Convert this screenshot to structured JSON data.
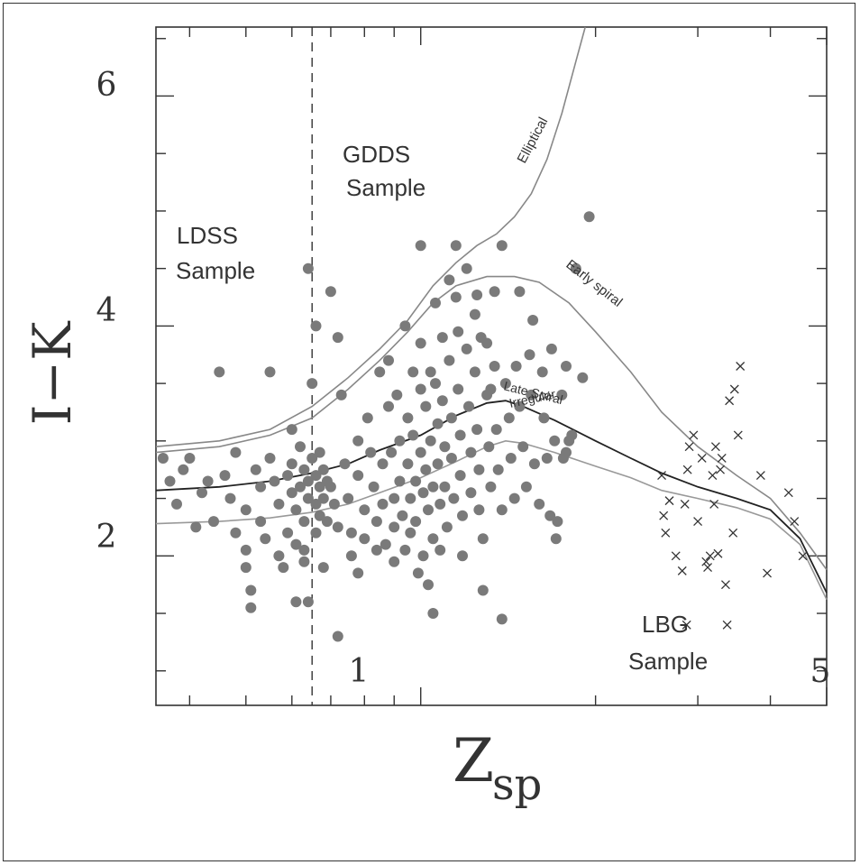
{
  "chart_data": {
    "type": "scatter",
    "xlabel_main": "Z",
    "xlabel_sub": "sp",
    "ylabel": "I−K",
    "x_scale": "log",
    "xlim": [
      0.35,
      5
    ],
    "ylim": [
      0.7,
      6.6
    ],
    "x_ticklabels": [
      "1",
      "5"
    ],
    "y_ticklabels": [
      "2",
      "4",
      "6"
    ],
    "grid": false,
    "region_labels": {
      "gdds_line1": "GDDS",
      "gdds_line2": "Sample",
      "ldss_line1": "LDSS",
      "ldss_line2": "Sample",
      "lbg_line1": "LBG",
      "lbg_line2": "Sample"
    },
    "track_labels": {
      "elliptical": "Elliptical",
      "early_spiral": "Early spiral",
      "late_spiral": "Late Spiral",
      "irregular": "Irregular"
    },
    "vertical_line_x": 0.65,
    "series": [
      {
        "name": "Elliptical",
        "color": "#888888",
        "points": [
          [
            0.35,
            2.95
          ],
          [
            0.45,
            3.0
          ],
          [
            0.55,
            3.1
          ],
          [
            0.65,
            3.3
          ],
          [
            0.75,
            3.55
          ],
          [
            0.85,
            3.8
          ],
          [
            0.95,
            4.05
          ],
          [
            1.05,
            4.35
          ],
          [
            1.15,
            4.55
          ],
          [
            1.25,
            4.7
          ],
          [
            1.35,
            4.8
          ],
          [
            1.45,
            4.95
          ],
          [
            1.55,
            5.15
          ],
          [
            1.65,
            5.45
          ],
          [
            1.75,
            5.85
          ],
          [
            1.85,
            6.3
          ],
          [
            1.92,
            6.6
          ]
        ]
      },
      {
        "name": "Early spiral",
        "color": "#888888",
        "points": [
          [
            0.35,
            2.9
          ],
          [
            0.45,
            2.95
          ],
          [
            0.55,
            3.05
          ],
          [
            0.65,
            3.2
          ],
          [
            0.75,
            3.45
          ],
          [
            0.85,
            3.7
          ],
          [
            0.95,
            3.95
          ],
          [
            1.05,
            4.2
          ],
          [
            1.15,
            4.35
          ],
          [
            1.3,
            4.43
          ],
          [
            1.45,
            4.43
          ],
          [
            1.6,
            4.38
          ],
          [
            1.8,
            4.2
          ],
          [
            2.0,
            3.95
          ],
          [
            2.3,
            3.6
          ],
          [
            2.6,
            3.25
          ],
          [
            3.0,
            2.95
          ],
          [
            3.5,
            2.7
          ],
          [
            4.0,
            2.5
          ],
          [
            4.5,
            2.2
          ],
          [
            5.0,
            1.88
          ]
        ]
      },
      {
        "name": "Late Spiral",
        "color": "#222222",
        "points": [
          [
            0.35,
            2.57
          ],
          [
            0.45,
            2.6
          ],
          [
            0.55,
            2.65
          ],
          [
            0.65,
            2.72
          ],
          [
            0.75,
            2.8
          ],
          [
            0.85,
            2.92
          ],
          [
            1.0,
            3.05
          ],
          [
            1.15,
            3.22
          ],
          [
            1.3,
            3.33
          ],
          [
            1.4,
            3.35
          ],
          [
            1.5,
            3.3
          ],
          [
            1.7,
            3.18
          ],
          [
            2.0,
            3.0
          ],
          [
            2.3,
            2.85
          ],
          [
            2.6,
            2.72
          ],
          [
            3.0,
            2.6
          ],
          [
            3.5,
            2.5
          ],
          [
            4.0,
            2.4
          ],
          [
            4.5,
            2.15
          ],
          [
            5.0,
            1.68
          ]
        ]
      },
      {
        "name": "Irregular",
        "color": "#999999",
        "points": [
          [
            0.35,
            2.28
          ],
          [
            0.45,
            2.3
          ],
          [
            0.55,
            2.33
          ],
          [
            0.65,
            2.38
          ],
          [
            0.75,
            2.45
          ],
          [
            0.85,
            2.55
          ],
          [
            1.0,
            2.68
          ],
          [
            1.15,
            2.82
          ],
          [
            1.3,
            2.95
          ],
          [
            1.4,
            3.0
          ],
          [
            1.5,
            2.98
          ],
          [
            1.7,
            2.9
          ],
          [
            2.0,
            2.78
          ],
          [
            2.3,
            2.68
          ],
          [
            2.6,
            2.57
          ],
          [
            3.0,
            2.5
          ],
          [
            3.5,
            2.42
          ],
          [
            4.0,
            2.32
          ],
          [
            4.5,
            2.1
          ],
          [
            5.0,
            1.62
          ]
        ]
      }
    ],
    "gray_points_color": "#7a7a7a",
    "gray_points": [
      [
        0.36,
        2.85
      ],
      [
        0.37,
        2.65
      ],
      [
        0.38,
        2.45
      ],
      [
        0.39,
        2.75
      ],
      [
        0.4,
        2.85
      ],
      [
        0.41,
        2.25
      ],
      [
        0.42,
        2.55
      ],
      [
        0.43,
        2.65
      ],
      [
        0.44,
        2.3
      ],
      [
        0.45,
        3.6
      ],
      [
        0.46,
        2.7
      ],
      [
        0.47,
        2.5
      ],
      [
        0.48,
        2.9
      ],
      [
        0.48,
        2.2
      ],
      [
        0.5,
        2.4
      ],
      [
        0.5,
        2.05
      ],
      [
        0.5,
        1.9
      ],
      [
        0.51,
        1.7
      ],
      [
        0.51,
        1.55
      ],
      [
        0.52,
        2.75
      ],
      [
        0.53,
        2.6
      ],
      [
        0.53,
        2.3
      ],
      [
        0.54,
        2.15
      ],
      [
        0.55,
        3.6
      ],
      [
        0.55,
        2.85
      ],
      [
        0.56,
        2.65
      ],
      [
        0.57,
        2.45
      ],
      [
        0.57,
        2.0
      ],
      [
        0.58,
        1.9
      ],
      [
        0.59,
        2.7
      ],
      [
        0.59,
        2.2
      ],
      [
        0.6,
        2.8
      ],
      [
        0.6,
        2.55
      ],
      [
        0.61,
        2.4
      ],
      [
        0.61,
        2.1
      ],
      [
        0.62,
        2.95
      ],
      [
        0.62,
        2.6
      ],
      [
        0.63,
        2.75
      ],
      [
        0.63,
        2.3
      ],
      [
        0.63,
        1.95
      ],
      [
        0.64,
        2.65
      ],
      [
        0.64,
        2.5
      ],
      [
        0.64,
        1.6
      ],
      [
        0.65,
        3.5
      ],
      [
        0.65,
        2.85
      ],
      [
        0.66,
        2.7
      ],
      [
        0.66,
        2.45
      ],
      [
        0.66,
        2.2
      ],
      [
        0.67,
        2.9
      ],
      [
        0.67,
        2.6
      ],
      [
        0.67,
        2.35
      ],
      [
        0.68,
        2.75
      ],
      [
        0.68,
        2.5
      ],
      [
        0.68,
        1.9
      ],
      [
        0.69,
        2.65
      ],
      [
        0.69,
        2.3
      ],
      [
        0.6,
        3.1
      ],
      [
        0.61,
        1.6
      ],
      [
        0.64,
        4.5
      ],
      [
        0.66,
        4.0
      ],
      [
        0.7,
        4.3
      ],
      [
        0.72,
        3.9
      ],
      [
        0.73,
        3.4
      ],
      [
        0.63,
        2.05
      ],
      [
        0.7,
        2.6
      ],
      [
        0.71,
        2.45
      ],
      [
        0.72,
        2.25
      ],
      [
        0.72,
        1.3
      ],
      [
        0.74,
        2.8
      ],
      [
        0.75,
        2.5
      ],
      [
        0.76,
        2.2
      ],
      [
        0.76,
        2.0
      ],
      [
        0.78,
        3.0
      ],
      [
        0.78,
        2.7
      ],
      [
        0.78,
        1.85
      ],
      [
        0.8,
        2.4
      ],
      [
        0.8,
        2.15
      ],
      [
        0.81,
        3.2
      ],
      [
        0.82,
        2.9
      ],
      [
        0.83,
        2.6
      ],
      [
        0.84,
        2.3
      ],
      [
        0.84,
        2.05
      ],
      [
        0.85,
        3.6
      ],
      [
        0.86,
        2.8
      ],
      [
        0.86,
        2.45
      ],
      [
        0.87,
        2.1
      ],
      [
        0.88,
        3.7
      ],
      [
        0.88,
        3.3
      ],
      [
        0.89,
        2.9
      ],
      [
        0.9,
        2.5
      ],
      [
        0.9,
        2.25
      ],
      [
        0.9,
        1.95
      ],
      [
        0.91,
        3.4
      ],
      [
        0.92,
        3.0
      ],
      [
        0.92,
        2.65
      ],
      [
        0.93,
        2.35
      ],
      [
        0.94,
        2.05
      ],
      [
        0.94,
        4.0
      ],
      [
        0.95,
        3.2
      ],
      [
        0.95,
        2.8
      ],
      [
        0.96,
        2.5
      ],
      [
        0.96,
        2.2
      ],
      [
        0.97,
        3.6
      ],
      [
        0.97,
        3.05
      ],
      [
        0.98,
        2.65
      ],
      [
        0.98,
        2.3
      ],
      [
        0.99,
        1.85
      ],
      [
        1.0,
        4.7
      ],
      [
        1.0,
        3.85
      ],
      [
        1.0,
        3.45
      ],
      [
        1.0,
        2.9
      ],
      [
        1.01,
        2.55
      ],
      [
        1.01,
        2.0
      ],
      [
        1.02,
        3.3
      ],
      [
        1.02,
        2.75
      ],
      [
        1.03,
        2.4
      ],
      [
        1.03,
        1.75
      ],
      [
        1.04,
        3.6
      ],
      [
        1.04,
        3.0
      ],
      [
        1.05,
        2.6
      ],
      [
        1.05,
        2.15
      ],
      [
        1.05,
        1.5
      ],
      [
        1.06,
        4.2
      ],
      [
        1.06,
        3.5
      ],
      [
        1.07,
        3.15
      ],
      [
        1.07,
        2.8
      ],
      [
        1.08,
        2.45
      ],
      [
        1.08,
        2.05
      ],
      [
        1.09,
        3.9
      ],
      [
        1.09,
        3.35
      ],
      [
        1.1,
        2.95
      ],
      [
        1.1,
        2.6
      ],
      [
        1.11,
        2.25
      ],
      [
        1.12,
        4.4
      ],
      [
        1.12,
        3.7
      ],
      [
        1.13,
        3.2
      ],
      [
        1.13,
        2.85
      ],
      [
        1.14,
        2.5
      ],
      [
        1.15,
        4.7
      ],
      [
        1.15,
        4.25
      ],
      [
        1.16,
        3.95
      ],
      [
        1.16,
        3.45
      ],
      [
        1.17,
        3.05
      ],
      [
        1.17,
        2.7
      ],
      [
        1.18,
        2.35
      ],
      [
        1.18,
        2.0
      ],
      [
        1.2,
        4.5
      ],
      [
        1.2,
        3.8
      ],
      [
        1.21,
        3.3
      ],
      [
        1.22,
        2.9
      ],
      [
        1.22,
        2.55
      ],
      [
        1.24,
        4.1
      ],
      [
        1.24,
        3.6
      ],
      [
        1.25,
        3.1
      ],
      [
        1.26,
        2.75
      ],
      [
        1.26,
        2.4
      ],
      [
        1.28,
        1.7
      ],
      [
        1.28,
        2.15
      ],
      [
        1.3,
        3.85
      ],
      [
        1.3,
        3.4
      ],
      [
        1.31,
        2.95
      ],
      [
        1.32,
        2.6
      ],
      [
        1.34,
        4.3
      ],
      [
        1.34,
        3.65
      ],
      [
        1.35,
        3.1
      ],
      [
        1.36,
        2.75
      ],
      [
        1.38,
        2.4
      ],
      [
        1.38,
        1.45
      ],
      [
        1.4,
        3.5
      ],
      [
        1.42,
        3.2
      ],
      [
        1.43,
        2.85
      ],
      [
        1.45,
        2.5
      ],
      [
        1.46,
        3.65
      ],
      [
        1.48,
        3.3
      ],
      [
        1.5,
        2.95
      ],
      [
        1.52,
        2.6
      ],
      [
        1.54,
        3.75
      ],
      [
        1.55,
        3.4
      ],
      [
        1.56,
        4.05
      ],
      [
        1.57,
        2.8
      ],
      [
        1.6,
        2.45
      ],
      [
        1.62,
        3.6
      ],
      [
        1.63,
        3.2
      ],
      [
        1.65,
        2.85
      ],
      [
        1.67,
        2.35
      ],
      [
        1.7,
        3.0
      ],
      [
        1.71,
        2.15
      ],
      [
        1.72,
        2.3
      ],
      [
        1.75,
        3.4
      ],
      [
        1.76,
        2.85
      ],
      [
        1.78,
        3.65
      ],
      [
        1.78,
        2.9
      ],
      [
        1.8,
        3.0
      ],
      [
        1.82,
        3.05
      ],
      [
        1.85,
        4.5
      ],
      [
        1.9,
        3.55
      ],
      [
        1.95,
        4.95
      ],
      [
        1.38,
        4.7
      ],
      [
        1.25,
        4.27
      ],
      [
        1.27,
        3.9
      ],
      [
        1.32,
        3.45
      ],
      [
        1.68,
        3.8
      ],
      [
        1.48,
        4.3
      ]
    ],
    "cross_points": [
      [
        2.6,
        2.7
      ],
      [
        2.62,
        2.35
      ],
      [
        2.64,
        2.2
      ],
      [
        2.68,
        2.48
      ],
      [
        2.75,
        2.0
      ],
      [
        2.82,
        1.87
      ],
      [
        2.85,
        2.45
      ],
      [
        2.87,
        1.4
      ],
      [
        2.88,
        2.75
      ],
      [
        2.9,
        2.95
      ],
      [
        2.95,
        3.05
      ],
      [
        3.0,
        2.3
      ],
      [
        3.05,
        2.85
      ],
      [
        3.1,
        1.95
      ],
      [
        3.12,
        1.9
      ],
      [
        3.15,
        2.0
      ],
      [
        3.18,
        2.7
      ],
      [
        3.2,
        2.45
      ],
      [
        3.22,
        2.95
      ],
      [
        3.25,
        2.02
      ],
      [
        3.28,
        2.75
      ],
      [
        3.3,
        2.85
      ],
      [
        3.35,
        1.75
      ],
      [
        3.37,
        1.4
      ],
      [
        3.4,
        3.35
      ],
      [
        3.45,
        2.2
      ],
      [
        3.47,
        3.45
      ],
      [
        3.52,
        3.05
      ],
      [
        3.55,
        3.65
      ],
      [
        3.85,
        2.7
      ],
      [
        3.95,
        1.85
      ],
      [
        4.3,
        2.55
      ],
      [
        4.4,
        2.3
      ],
      [
        4.55,
        2.0
      ]
    ]
  }
}
